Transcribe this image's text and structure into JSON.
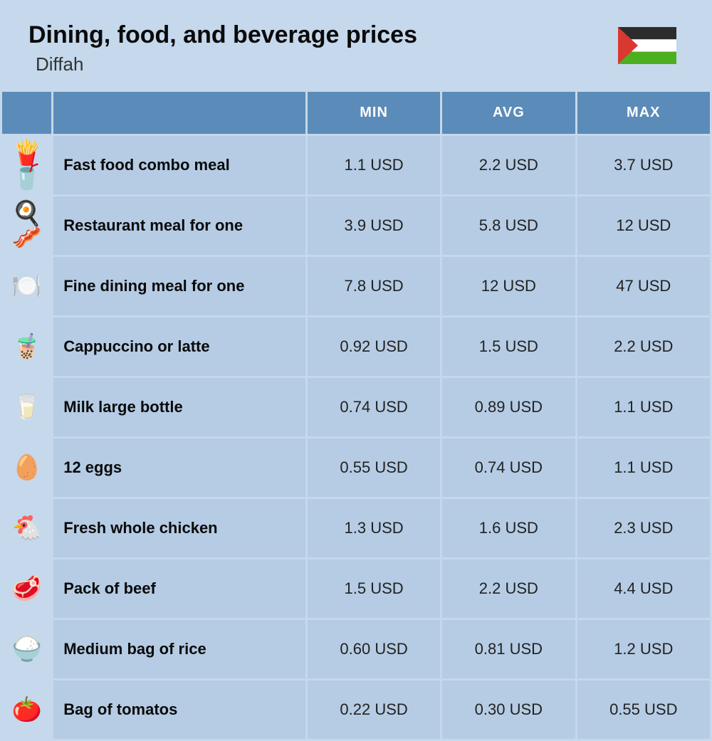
{
  "header": {
    "title": "Dining, food, and beverage prices",
    "subtitle": "Diffah"
  },
  "columns": {
    "min": "MIN",
    "avg": "AVG",
    "max": "MAX"
  },
  "flag": {
    "width": 82,
    "height": 52,
    "stripe_black": "#2c2c2c",
    "stripe_white": "#ffffff",
    "stripe_green": "#4caf1f",
    "triangle_red": "#d93831"
  },
  "colors": {
    "page_bg": "#c5d8ec",
    "header_bg": "#5b8bb8",
    "row_bg": "#b5cce4",
    "icon_bg": "#c5d8ec",
    "text": "#222222",
    "title_text": "#0a0a0a"
  },
  "rows": [
    {
      "icon": "🍟🥤",
      "label": "Fast food combo meal",
      "min": "1.1 USD",
      "avg": "2.2 USD",
      "max": "3.7 USD"
    },
    {
      "icon": "🍳🥓",
      "label": "Restaurant meal for one",
      "min": "3.9 USD",
      "avg": "5.8 USD",
      "max": "12 USD"
    },
    {
      "icon": "🍽️",
      "label": "Fine dining meal for one",
      "min": "7.8 USD",
      "avg": "12 USD",
      "max": "47 USD"
    },
    {
      "icon": "🧋",
      "label": "Cappuccino or latte",
      "min": "0.92 USD",
      "avg": "1.5 USD",
      "max": "2.2 USD"
    },
    {
      "icon": "🥛",
      "label": "Milk large bottle",
      "min": "0.74 USD",
      "avg": "0.89 USD",
      "max": "1.1 USD"
    },
    {
      "icon": "🥚",
      "label": "12 eggs",
      "min": "0.55 USD",
      "avg": "0.74 USD",
      "max": "1.1 USD"
    },
    {
      "icon": "🐔",
      "label": "Fresh whole chicken",
      "min": "1.3 USD",
      "avg": "1.6 USD",
      "max": "2.3 USD"
    },
    {
      "icon": "🥩",
      "label": "Pack of beef",
      "min": "1.5 USD",
      "avg": "2.2 USD",
      "max": "4.4 USD"
    },
    {
      "icon": "🍚",
      "label": "Medium bag of rice",
      "min": "0.60 USD",
      "avg": "0.81 USD",
      "max": "1.2 USD"
    },
    {
      "icon": "🍅",
      "label": "Bag of tomatos",
      "min": "0.22 USD",
      "avg": "0.30 USD",
      "max": "0.55 USD"
    }
  ]
}
